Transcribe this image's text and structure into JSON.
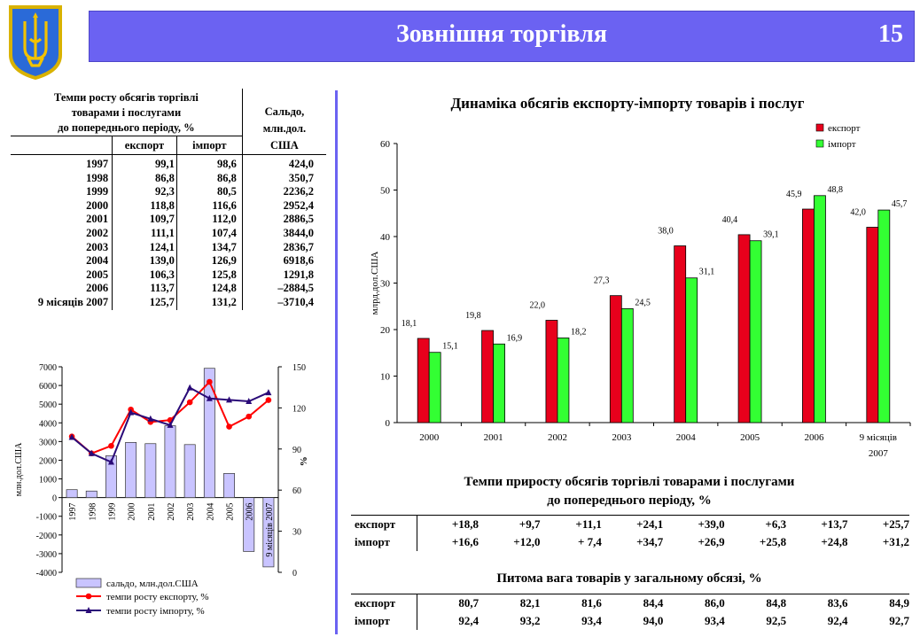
{
  "header": {
    "title": "Зовнішня торгівля",
    "page_number": "15",
    "bar_color": "#6b62f2",
    "emblem_icon": "ukraine-trident-emblem-icon"
  },
  "growth_table": {
    "heading": "Темпи росту обсягів торгівлі товарами і послугами до попереднього періоду, %",
    "heading_lines": [
      "Темпи росту обсягів торгівлі",
      "товарами і послугами",
      "до попереднього періоду, %"
    ],
    "col_export": "експорт",
    "col_import": "імпорт",
    "balance_heading_lines": [
      "Сальдо,",
      "млн.дол.",
      "США"
    ],
    "rows": [
      [
        "1997",
        "99,1",
        "98,6",
        "424,0"
      ],
      [
        "1998",
        "86,8",
        "86,8",
        "350,7"
      ],
      [
        "1999",
        "92,3",
        "80,5",
        "2236,2"
      ],
      [
        "2000",
        "118,8",
        "116,6",
        "2952,4"
      ],
      [
        "2001",
        "109,7",
        "112,0",
        "2886,5"
      ],
      [
        "2002",
        "111,1",
        "107,4",
        "3844,0"
      ],
      [
        "2003",
        "124,1",
        "134,7",
        "2836,7"
      ],
      [
        "2004",
        "139,0",
        "126,9",
        "6918,6"
      ],
      [
        "2005",
        "106,3",
        "125,8",
        "1291,8"
      ],
      [
        "2006",
        "113,7",
        "124,8",
        "–2884,5"
      ],
      [
        "9 місяців 2007",
        "125,7",
        "131,2",
        "–3710,4"
      ]
    ]
  },
  "chart_data": [
    {
      "type": "bar",
      "title": "Динаміка обсягів експорту-імпорту товарів і послуг",
      "xlabel": "",
      "ylabel": "млрд.дол.США",
      "ylim": [
        0,
        60
      ],
      "yticks": [
        "0",
        "10",
        "20",
        "30",
        "40",
        "50",
        "60"
      ],
      "categories": [
        "2000",
        "2001",
        "2002",
        "2003",
        "2004",
        "2005",
        "2006",
        "9 місяців 2007"
      ],
      "category_lines": [
        [
          "2000"
        ],
        [
          "2001"
        ],
        [
          "2002"
        ],
        [
          "2003"
        ],
        [
          "2004"
        ],
        [
          "2005"
        ],
        [
          "2006"
        ],
        [
          "9 місяців",
          "2007"
        ]
      ],
      "series": [
        {
          "name": "експорт",
          "color": "#e8001c",
          "values": [
            18.1,
            19.8,
            22.0,
            27.3,
            38.0,
            40.4,
            45.9,
            42.0
          ],
          "labels": [
            "18,1",
            "19,8",
            "22,0",
            "27,3",
            "38,0",
            "40,4",
            "45,9",
            "42,0"
          ]
        },
        {
          "name": "імпорт",
          "color": "#33ff33",
          "values": [
            15.1,
            16.9,
            18.2,
            24.5,
            31.1,
            39.1,
            48.8,
            45.7
          ],
          "labels": [
            "15,1",
            "16,9",
            "18,2",
            "24,5",
            "31,1",
            "39,1",
            "48,8",
            "45,7"
          ]
        }
      ],
      "legend": "top-right",
      "grid": false
    },
    {
      "type": "bar+line",
      "title": "",
      "ylabel_left": "млн.дол.США",
      "ylabel_right": "%",
      "ylim_left": [
        -4000,
        7000
      ],
      "ylim_right": [
        0,
        150
      ],
      "yticks_left": [
        "-4000",
        "-3000",
        "-2000",
        "-1000",
        "0",
        "1000",
        "2000",
        "3000",
        "4000",
        "5000",
        "6000",
        "7000"
      ],
      "yticks_right": [
        "0",
        "30",
        "60",
        "90",
        "120",
        "150"
      ],
      "categories": [
        "1997",
        "1998",
        "1999",
        "2000",
        "2001",
        "2002",
        "2003",
        "2004",
        "2005",
        "2006",
        "9 місяців 2007"
      ],
      "series": [
        {
          "name": "сальдо, млн.дол.США",
          "type": "bar",
          "axis": "left",
          "color": "#c9c4ff",
          "values": [
            424.0,
            350.7,
            2236.2,
            2952.4,
            2886.5,
            3844.0,
            2836.7,
            6918.6,
            1291.8,
            -2884.5,
            -3710.4
          ]
        },
        {
          "name": "темпи росту експорту, %",
          "type": "line",
          "axis": "right",
          "color": "#ff0000",
          "values": [
            99.1,
            86.8,
            92.3,
            118.8,
            109.7,
            111.1,
            124.1,
            139.0,
            106.3,
            113.7,
            125.7
          ]
        },
        {
          "name": "темпи росту імпорту, %",
          "type": "line",
          "axis": "right",
          "color": "#2a0a78",
          "values": [
            98.6,
            86.8,
            80.5,
            116.6,
            112.0,
            107.4,
            134.7,
            126.9,
            125.8,
            124.8,
            131.2
          ]
        }
      ],
      "legend": "bottom",
      "grid": false
    }
  ],
  "increment_table": {
    "title_lines": [
      "Темпи  приросту обсягів торгівлі товарами і послугами",
      "до попереднього періоду, %"
    ],
    "rows": [
      {
        "label": "експорт",
        "values": [
          "+18,8",
          "+9,7",
          "+11,1",
          "+24,1",
          "+39,0",
          "+6,3",
          "+13,7",
          "+25,7"
        ]
      },
      {
        "label": "імпорт",
        "values": [
          "+16,6",
          "+12,0",
          "+ 7,4",
          "+34,7",
          "+26,9",
          "+25,8",
          "+24,8",
          "+31,2"
        ]
      }
    ]
  },
  "share_table": {
    "title": "Питома вага товарів у загальному обсязі, %",
    "rows": [
      {
        "label": "експорт",
        "values": [
          "80,7",
          "82,1",
          "81,6",
          "84,4",
          "86,0",
          "84,8",
          "83,6",
          "84,9"
        ]
      },
      {
        "label": "імпорт",
        "values": [
          "92,4",
          "93,2",
          "93,4",
          "94,0",
          "93,4",
          "92,5",
          "92,4",
          "92,7"
        ]
      }
    ]
  }
}
